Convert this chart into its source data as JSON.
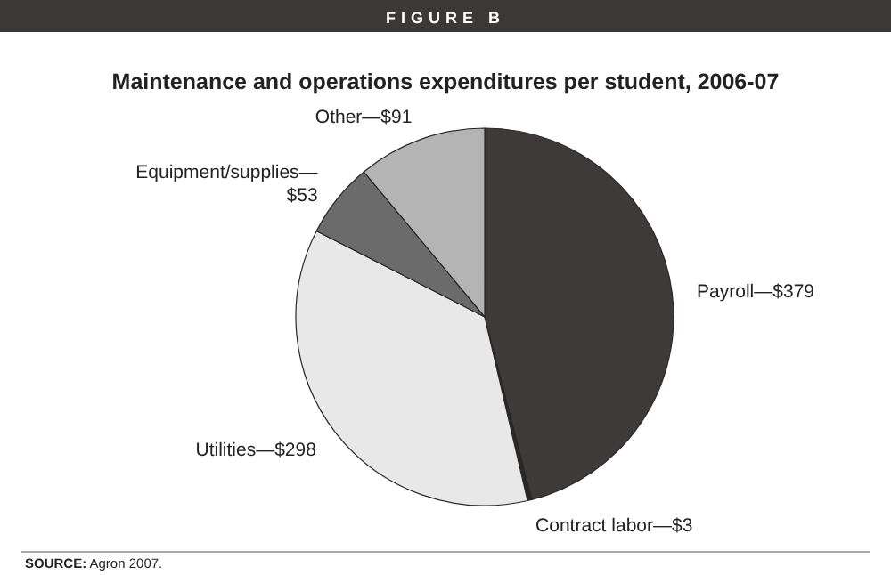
{
  "chart_data": {
    "type": "pie",
    "title": "Maintenance and operations expenditures per student, 2006-07",
    "categories": [
      "Payroll—$379",
      "Contract labor—$3",
      "Utilities—$298",
      "Equipment/supplies—$53",
      "Other—$91"
    ],
    "values": [
      379,
      3,
      298,
      53,
      91
    ],
    "colors": [
      "#3e3a3a",
      "#2a2727",
      "#e8e8e8",
      "#6b6b6b",
      "#b4b4b4"
    ],
    "annotations": [
      "FIGURE B",
      "SOURCE: Agron 2007."
    ]
  }
}
